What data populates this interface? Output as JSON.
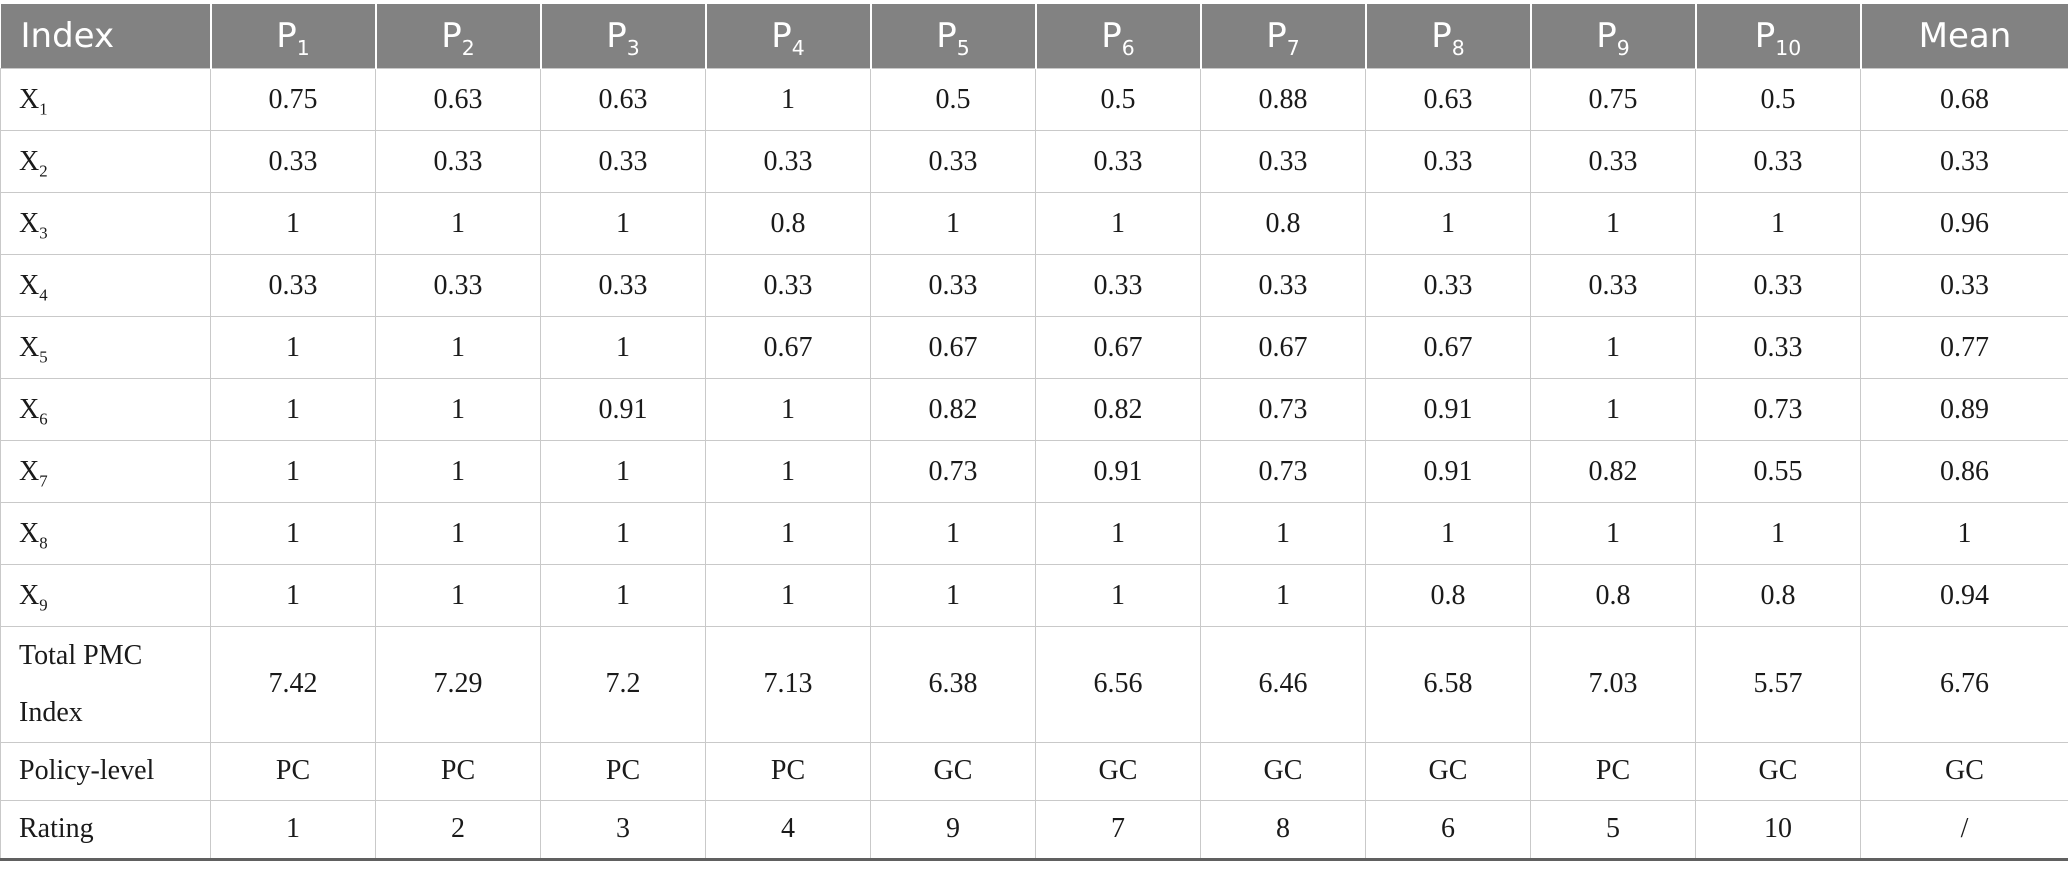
{
  "colors": {
    "header_bg": "#828282",
    "header_text": "#ffffff",
    "grid_line": "#c9c9c9",
    "bottom_rule": "#606060",
    "body_text": "#1a1a1a"
  },
  "table": {
    "columns": [
      {
        "text": "Index"
      },
      {
        "base": "P",
        "sub": "1"
      },
      {
        "base": "P",
        "sub": "2"
      },
      {
        "base": "P",
        "sub": "3"
      },
      {
        "base": "P",
        "sub": "4"
      },
      {
        "base": "P",
        "sub": "5"
      },
      {
        "base": "P",
        "sub": "6"
      },
      {
        "base": "P",
        "sub": "7"
      },
      {
        "base": "P",
        "sub": "8"
      },
      {
        "base": "P",
        "sub": "9"
      },
      {
        "base": "P",
        "sub": "10"
      },
      {
        "text": "Mean"
      }
    ],
    "rows": [
      {
        "label": {
          "base": "X",
          "sub": "1"
        },
        "values": [
          "0.75",
          "0.63",
          "0.63",
          "1",
          "0.5",
          "0.5",
          "0.88",
          "0.63",
          "0.75",
          "0.5",
          "0.68"
        ]
      },
      {
        "label": {
          "base": "X",
          "sub": "2"
        },
        "values": [
          "0.33",
          "0.33",
          "0.33",
          "0.33",
          "0.33",
          "0.33",
          "0.33",
          "0.33",
          "0.33",
          "0.33",
          "0.33"
        ]
      },
      {
        "label": {
          "base": "X",
          "sub": "3"
        },
        "values": [
          "1",
          "1",
          "1",
          "0.8",
          "1",
          "1",
          "0.8",
          "1",
          "1",
          "1",
          "0.96"
        ]
      },
      {
        "label": {
          "base": "X",
          "sub": "4"
        },
        "values": [
          "0.33",
          "0.33",
          "0.33",
          "0.33",
          "0.33",
          "0.33",
          "0.33",
          "0.33",
          "0.33",
          "0.33",
          "0.33"
        ]
      },
      {
        "label": {
          "base": "X",
          "sub": "5"
        },
        "values": [
          "1",
          "1",
          "1",
          "0.67",
          "0.67",
          "0.67",
          "0.67",
          "0.67",
          "1",
          "0.33",
          "0.77"
        ]
      },
      {
        "label": {
          "base": "X",
          "sub": "6"
        },
        "values": [
          "1",
          "1",
          "0.91",
          "1",
          "0.82",
          "0.82",
          "0.73",
          "0.91",
          "1",
          "0.73",
          "0.89"
        ]
      },
      {
        "label": {
          "base": "X",
          "sub": "7"
        },
        "values": [
          "1",
          "1",
          "1",
          "1",
          "0.73",
          "0.91",
          "0.73",
          "0.91",
          "0.82",
          "0.55",
          "0.86"
        ]
      },
      {
        "label": {
          "base": "X",
          "sub": "8"
        },
        "values": [
          "1",
          "1",
          "1",
          "1",
          "1",
          "1",
          "1",
          "1",
          "1",
          "1",
          "1"
        ]
      },
      {
        "label": {
          "base": "X",
          "sub": "9"
        },
        "values": [
          "1",
          "1",
          "1",
          "1",
          "1",
          "1",
          "1",
          "0.8",
          "0.8",
          "0.8",
          "0.94"
        ]
      },
      {
        "label": {
          "text": "Total PMC Index"
        },
        "tall": true,
        "values": [
          "7.42",
          "7.29",
          "7.2",
          "7.13",
          "6.38",
          "6.56",
          "6.46",
          "6.58",
          "7.03",
          "5.57",
          "6.76"
        ]
      },
      {
        "label": {
          "text": "Policy-level"
        },
        "short": true,
        "values": [
          "PC",
          "PC",
          "PC",
          "PC",
          "GC",
          "GC",
          "GC",
          "GC",
          "PC",
          "GC",
          "GC"
        ]
      },
      {
        "label": {
          "text": "Rating"
        },
        "short": true,
        "values": [
          "1",
          "2",
          "3",
          "4",
          "9",
          "7",
          "8",
          "6",
          "5",
          "10",
          "/"
        ]
      }
    ]
  }
}
